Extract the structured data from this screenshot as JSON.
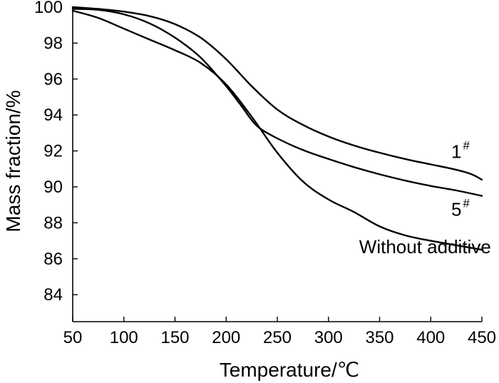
{
  "chart_data": {
    "type": "line",
    "title": "",
    "xlabel": "Temperature/℃",
    "ylabel": "Mass fraction/%",
    "xlim": [
      50,
      450
    ],
    "ylim": [
      82.5,
      100
    ],
    "xticks": [
      50,
      100,
      150,
      200,
      250,
      300,
      350,
      400,
      450
    ],
    "yticks": [
      84,
      86,
      88,
      90,
      92,
      94,
      96,
      98,
      100
    ],
    "grid": false,
    "legend": "none",
    "series": [
      {
        "name": "1",
        "label_sup": "#",
        "x": [
          50,
          75,
          100,
          125,
          150,
          175,
          200,
          225,
          250,
          275,
          300,
          325,
          350,
          375,
          400,
          425,
          440,
          450
        ],
        "y": [
          100.0,
          99.9,
          99.75,
          99.5,
          99.05,
          98.3,
          97.1,
          95.6,
          94.3,
          93.45,
          92.8,
          92.3,
          91.9,
          91.55,
          91.25,
          90.95,
          90.7,
          90.4
        ]
      },
      {
        "name": "5",
        "label_sup": "#",
        "x": [
          50,
          75,
          100,
          125,
          150,
          175,
          200,
          215,
          230,
          250,
          275,
          300,
          325,
          350,
          375,
          400,
          425,
          450
        ],
        "y": [
          99.9,
          99.85,
          99.6,
          99.1,
          98.3,
          97.2,
          95.6,
          94.5,
          93.4,
          92.7,
          92.05,
          91.55,
          91.1,
          90.7,
          90.35,
          90.05,
          89.8,
          89.5
        ]
      },
      {
        "name": "Without additive",
        "label_sup": "",
        "x": [
          50,
          75,
          100,
          125,
          150,
          175,
          200,
          225,
          250,
          275,
          300,
          325,
          350,
          375,
          400,
          425,
          450
        ],
        "y": [
          99.8,
          99.4,
          98.8,
          98.2,
          97.6,
          96.9,
          95.7,
          93.9,
          91.9,
          90.3,
          89.3,
          88.6,
          87.8,
          87.3,
          87.0,
          86.75,
          86.5
        ]
      }
    ],
    "annotations": [
      {
        "text": "1",
        "sup": "#",
        "at_x": 420,
        "at_y": 91.6
      },
      {
        "text": "5",
        "sup": "#",
        "at_x": 420,
        "at_y": 88.4
      },
      {
        "text": "Without additive",
        "sup": "",
        "at_x": 330,
        "at_y": 86.3
      }
    ]
  }
}
